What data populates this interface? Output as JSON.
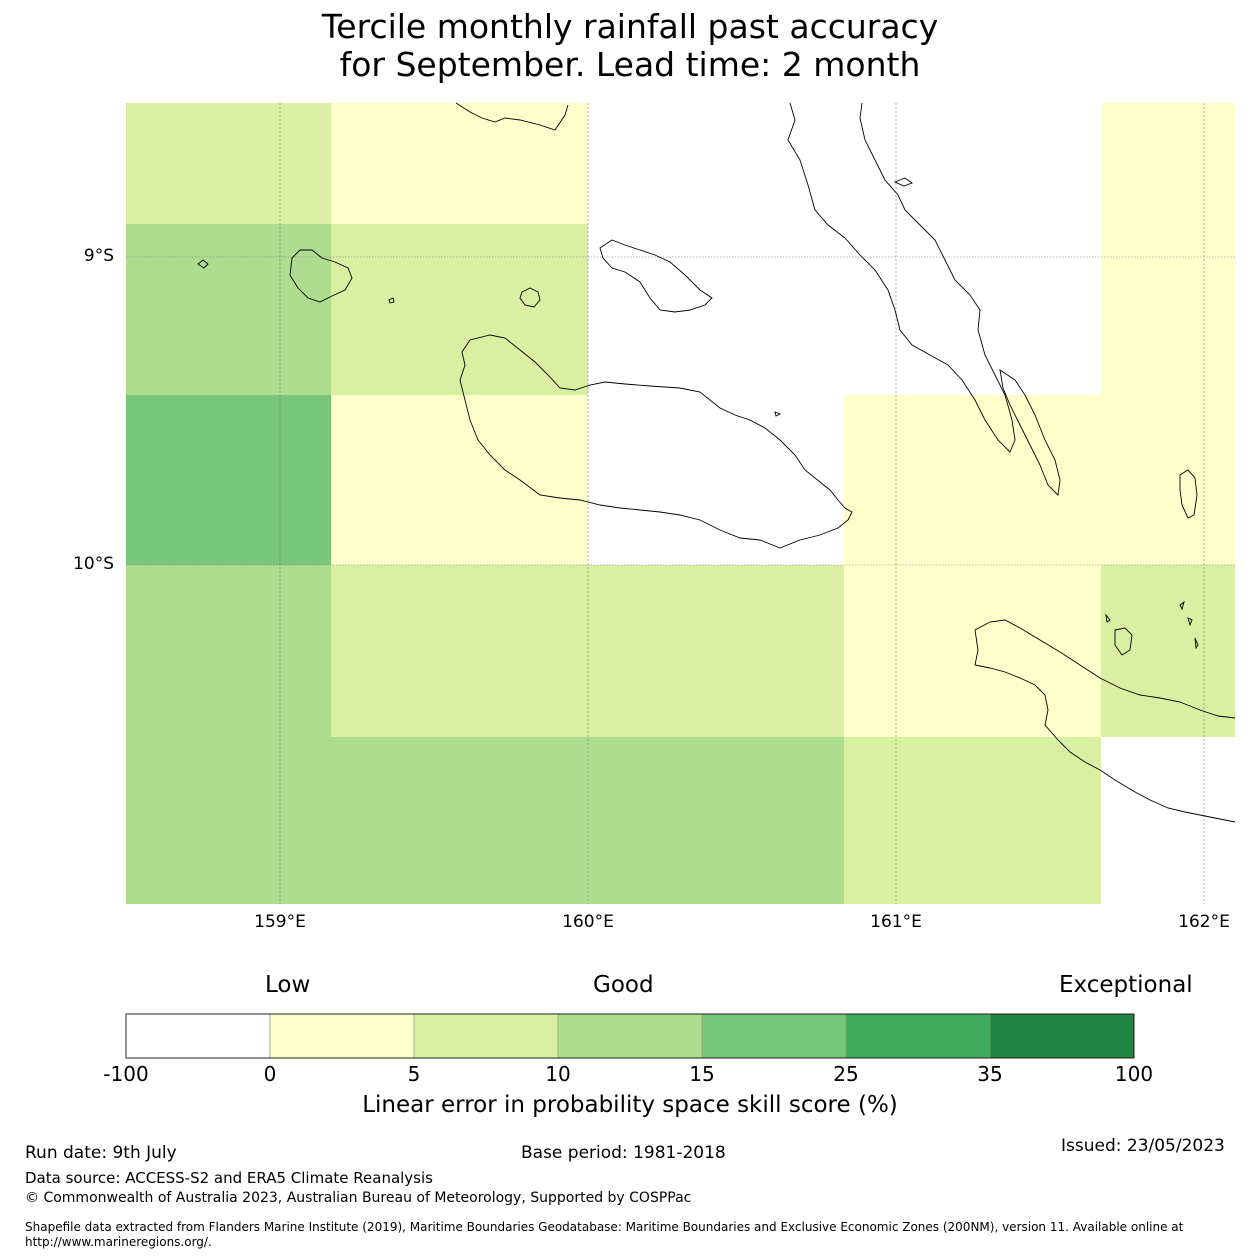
{
  "title": {
    "line1": "Tercile monthly rainfall past accuracy",
    "line2": "for September. Lead time: 2 month"
  },
  "map": {
    "lat_labels": [
      "9°S",
      "10°S"
    ],
    "lon_labels": [
      "159°E",
      "160°E",
      "161°E",
      "162°E"
    ],
    "grid_cells": [
      {
        "row": 0,
        "col": 0,
        "category": 2
      },
      {
        "row": 0,
        "col": 1,
        "category": 1
      },
      {
        "row": 0,
        "col": 2,
        "category": 0
      },
      {
        "row": 0,
        "col": 3,
        "category": 0
      },
      {
        "row": 0,
        "col": 4,
        "category": 1
      },
      {
        "row": 1,
        "col": 0,
        "category": 3
      },
      {
        "row": 1,
        "col": 1,
        "category": 2
      },
      {
        "row": 1,
        "col": 2,
        "category": 0
      },
      {
        "row": 1,
        "col": 3,
        "category": 0
      },
      {
        "row": 1,
        "col": 4,
        "category": 1
      },
      {
        "row": 2,
        "col": 0,
        "category": 4
      },
      {
        "row": 2,
        "col": 1,
        "category": 1
      },
      {
        "row": 2,
        "col": 2,
        "category": 0
      },
      {
        "row": 2,
        "col": 3,
        "category": 1
      },
      {
        "row": 2,
        "col": 4,
        "category": 1
      },
      {
        "row": 3,
        "col": 0,
        "category": 3
      },
      {
        "row": 3,
        "col": 1,
        "category": 2
      },
      {
        "row": 3,
        "col": 2,
        "category": 2
      },
      {
        "row": 3,
        "col": 3,
        "category": 1
      },
      {
        "row": 3,
        "col": 4,
        "category": 2
      },
      {
        "row": 4,
        "col": 0,
        "category": 3
      },
      {
        "row": 4,
        "col": 1,
        "category": 3
      },
      {
        "row": 4,
        "col": 2,
        "category": 3
      },
      {
        "row": 4,
        "col": 3,
        "category": 2
      },
      {
        "row": 4,
        "col": 4,
        "category": 0
      }
    ]
  },
  "colorbar": {
    "category_labels": {
      "low": "Low",
      "good": "Good",
      "exceptional": "Exceptional"
    },
    "colors": [
      "#ffffff",
      "#ffffcc",
      "#d9f0a3",
      "#addd8e",
      "#78c679",
      "#41ab5d",
      "#238443"
    ],
    "ticks": [
      "-100",
      "0",
      "5",
      "10",
      "15",
      "25",
      "35",
      "100"
    ],
    "label": "Linear error in probability space skill score (%)"
  },
  "footer": {
    "run_date": "Run date: 9th July",
    "base_period": "Base period: 1981-2018",
    "issued": "Issued: 23/05/2023",
    "data_source": "Data source: ACCESS-S2 and ERA5 Climate Reanalysis",
    "copyright": "© Commonwealth of Australia 2023, Australian Bureau of Meteorology, Supported by COSPPac",
    "shapefile": "Shapefile data extracted from Flanders Marine Institute (2019), Maritime Boundaries Geodatabase: Maritime Boundaries and Exclusive Economic Zones (200NM), version 11. Available online at http://www.marineregions.org/."
  }
}
